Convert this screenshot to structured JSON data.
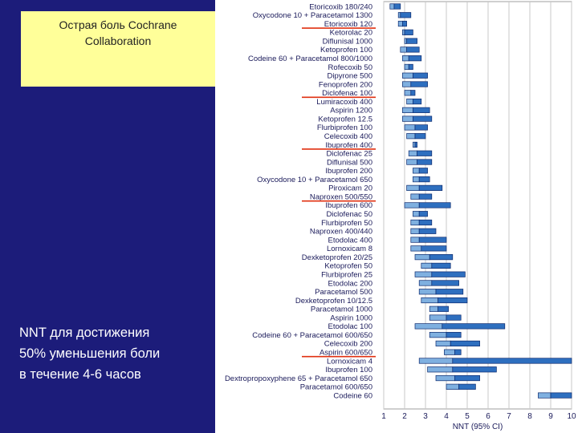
{
  "slide": {
    "title_lines": [
      "Острая боль Cochrane",
      "Collaboration"
    ],
    "note_lines": [
      "NNT для достижения",
      "50% уменьшения боли",
      "в течение 4-6 часов"
    ]
  },
  "chart_data": {
    "type": "forest",
    "xlabel": "NNT (95% CI)",
    "xlim": [
      1,
      10
    ],
    "xticks": [
      1,
      2,
      3,
      4,
      5,
      6,
      7,
      8,
      9,
      10
    ],
    "colors": {
      "ci_low": "#7fb0e0",
      "ci_high": "#2e6fbf",
      "outline": "#0d2a6e",
      "grid": "#c8c8c8",
      "underline": "#e03010"
    },
    "series": [
      {
        "label": "Etoricoxib 180/240",
        "lo": 1.3,
        "nnt": 1.5,
        "hi": 1.8,
        "underline": false
      },
      {
        "label": "Oxycodone 10 + Paracetamol 1300",
        "lo": 1.7,
        "nnt": 1.8,
        "hi": 2.3,
        "underline": false
      },
      {
        "label": "Etoricoxib 120",
        "lo": 1.7,
        "nnt": 1.9,
        "hi": 2.1,
        "underline": true
      },
      {
        "label": "Ketorolac 20",
        "lo": 1.9,
        "nnt": 2.0,
        "hi": 2.4,
        "underline": false
      },
      {
        "label": "Diflunisal 1000",
        "lo": 2.0,
        "nnt": 2.1,
        "hi": 2.6,
        "underline": false
      },
      {
        "label": "Ketoprofen 100",
        "lo": 1.8,
        "nnt": 2.1,
        "hi": 2.7,
        "underline": false
      },
      {
        "label": "Codeine 60 + Paracetamol 800/1000",
        "lo": 1.9,
        "nnt": 2.2,
        "hi": 2.8,
        "underline": false
      },
      {
        "label": "Rofecoxib 50",
        "lo": 2.0,
        "nnt": 2.2,
        "hi": 2.4,
        "underline": false
      },
      {
        "label": "Dipyrone 500",
        "lo": 1.9,
        "nnt": 2.4,
        "hi": 3.1,
        "underline": false
      },
      {
        "label": "Fenoprofen 200",
        "lo": 1.9,
        "nnt": 2.3,
        "hi": 3.1,
        "underline": false
      },
      {
        "label": "Diclofenac 100",
        "lo": 2.0,
        "nnt": 2.3,
        "hi": 2.5,
        "underline": true
      },
      {
        "label": "Lumiracoxib 400",
        "lo": 2.1,
        "nnt": 2.4,
        "hi": 2.8,
        "underline": false
      },
      {
        "label": "Aspirin 1200",
        "lo": 1.9,
        "nnt": 2.4,
        "hi": 3.2,
        "underline": false
      },
      {
        "label": "Ketoprofen 12.5",
        "lo": 1.9,
        "nnt": 2.4,
        "hi": 3.3,
        "underline": false
      },
      {
        "label": "Flurbiprofen 100",
        "lo": 2.0,
        "nnt": 2.5,
        "hi": 3.1,
        "underline": false
      },
      {
        "label": "Celecoxib 400",
        "lo": 2.1,
        "nnt": 2.5,
        "hi": 3.0,
        "underline": false
      },
      {
        "label": "Ibuprofen 400",
        "lo": 2.4,
        "nnt": 2.5,
        "hi": 2.6,
        "underline": true
      },
      {
        "label": "Diclofenac 25",
        "lo": 2.2,
        "nnt": 2.6,
        "hi": 3.3,
        "underline": false
      },
      {
        "label": "Diflunisal 500",
        "lo": 2.1,
        "nnt": 2.6,
        "hi": 3.3,
        "underline": false
      },
      {
        "label": "Ibuprofen 200",
        "lo": 2.4,
        "nnt": 2.7,
        "hi": 3.1,
        "underline": false
      },
      {
        "label": "Oxycodone 10 + Paracetamol 650",
        "lo": 2.4,
        "nnt": 2.7,
        "hi": 3.2,
        "underline": false
      },
      {
        "label": "Piroxicam 20",
        "lo": 2.1,
        "nnt": 2.7,
        "hi": 3.8,
        "underline": false
      },
      {
        "label": "Naproxen 500/550",
        "lo": 2.3,
        "nnt": 2.7,
        "hi": 3.3,
        "underline": true
      },
      {
        "label": "Ibuprofen 600",
        "lo": 2.0,
        "nnt": 2.7,
        "hi": 4.2,
        "underline": false
      },
      {
        "label": "Diclofenac 50",
        "lo": 2.4,
        "nnt": 2.7,
        "hi": 3.1,
        "underline": false
      },
      {
        "label": "Flurbiprofen 50",
        "lo": 2.3,
        "nnt": 2.7,
        "hi": 3.3,
        "underline": false
      },
      {
        "label": "Naproxen 400/440",
        "lo": 2.3,
        "nnt": 2.7,
        "hi": 3.5,
        "underline": false
      },
      {
        "label": "Etodolac 400",
        "lo": 2.3,
        "nnt": 2.7,
        "hi": 4.0,
        "underline": false
      },
      {
        "label": "Lornoxicam 8",
        "lo": 2.3,
        "nnt": 2.8,
        "hi": 4.0,
        "underline": false
      },
      {
        "label": "Dexketoprofen 20/25",
        "lo": 2.5,
        "nnt": 3.2,
        "hi": 4.3,
        "underline": false
      },
      {
        "label": "Ketoprofen 50",
        "lo": 2.8,
        "nnt": 3.3,
        "hi": 4.2,
        "underline": false
      },
      {
        "label": "Flurbiprofen 25",
        "lo": 2.5,
        "nnt": 3.3,
        "hi": 4.9,
        "underline": false
      },
      {
        "label": "Etodolac 200",
        "lo": 2.7,
        "nnt": 3.3,
        "hi": 4.6,
        "underline": false
      },
      {
        "label": "Paracetamol 500",
        "lo": 2.7,
        "nnt": 3.5,
        "hi": 4.8,
        "underline": false
      },
      {
        "label": "Dexketoprofen 10/12.5",
        "lo": 2.8,
        "nnt": 3.6,
        "hi": 5.0,
        "underline": false
      },
      {
        "label": "Paracetamol 1000",
        "lo": 3.2,
        "nnt": 3.6,
        "hi": 4.1,
        "underline": false
      },
      {
        "label": "Aspirin 1000",
        "lo": 3.2,
        "nnt": 4.0,
        "hi": 4.7,
        "underline": false
      },
      {
        "label": "Etodolac 100",
        "lo": 2.5,
        "nnt": 3.8,
        "hi": 6.8,
        "underline": false
      },
      {
        "label": "Codeine 60 + Paracetamol 600/650",
        "lo": 3.2,
        "nnt": 4.0,
        "hi": 4.7,
        "underline": false
      },
      {
        "label": "Celecoxib 200",
        "lo": 3.5,
        "nnt": 4.2,
        "hi": 5.6,
        "underline": false
      },
      {
        "label": "Aspirin 600/650",
        "lo": 3.9,
        "nnt": 4.4,
        "hi": 4.7,
        "underline": true
      },
      {
        "label": "Lornoxicam 4",
        "lo": 2.7,
        "nnt": 4.3,
        "hi": 10.0,
        "underline": false
      },
      {
        "label": "Ibuprofen 100",
        "lo": 3.1,
        "nnt": 4.3,
        "hi": 6.4,
        "underline": false
      },
      {
        "label": "Dextropropoxyphene 65 + Paracetamol 650",
        "lo": 3.5,
        "nnt": 4.4,
        "hi": 5.6,
        "underline": false
      },
      {
        "label": "Paracetamol 600/650",
        "lo": 4.0,
        "nnt": 4.6,
        "hi": 5.4,
        "underline": false
      },
      {
        "label": "Codeine 60",
        "lo": 8.4,
        "nnt": 9.0,
        "hi": 10.0,
        "underline": false
      }
    ]
  }
}
